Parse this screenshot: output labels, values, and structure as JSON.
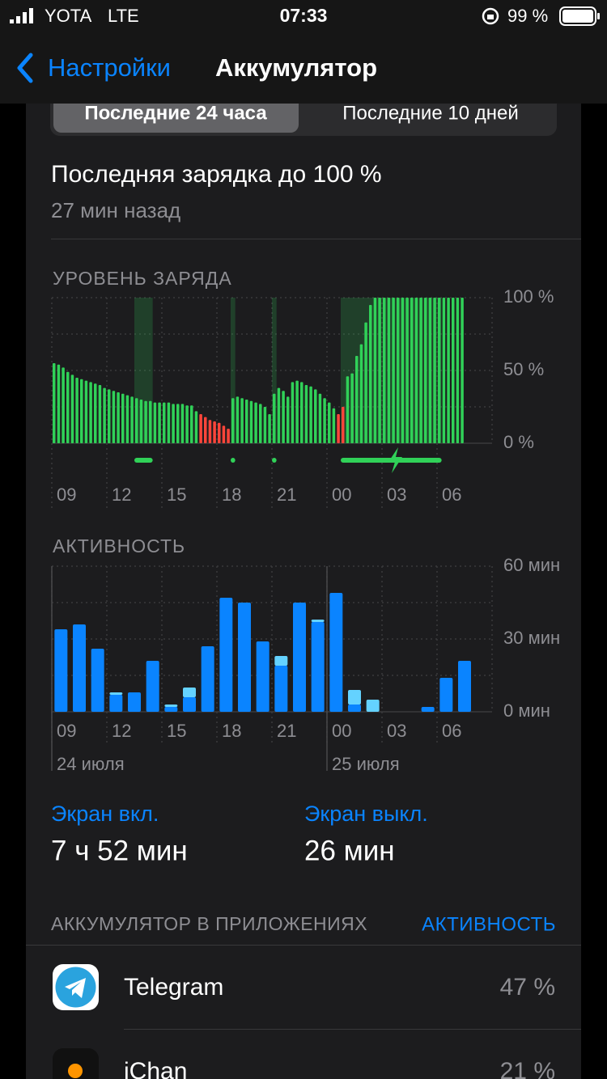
{
  "status_bar": {
    "carrier": "YOTA",
    "network": "LTE",
    "time": "07:33",
    "battery": "99 %"
  },
  "nav": {
    "back": "Настройки",
    "title": "Аккумулятор"
  },
  "segments": [
    "Последние 24 часа",
    "Последние 10 дней"
  ],
  "last_charge": {
    "title": "Последняя зарядка до 100 %",
    "subtitle": "27 мин назад"
  },
  "chart_data": [
    {
      "type": "bar",
      "title": "УРОВЕНЬ ЗАРЯДА",
      "values": [
        55,
        54,
        52,
        49,
        47,
        45,
        44,
        43,
        42,
        41,
        40,
        38,
        37,
        36,
        35,
        34,
        33,
        32,
        31,
        30,
        29,
        29,
        28,
        28,
        28,
        28,
        27,
        27,
        27,
        26,
        26,
        22,
        20,
        18,
        16,
        15,
        14,
        12,
        10,
        31,
        32,
        31,
        30,
        29,
        28,
        27,
        25,
        20,
        34,
        38,
        36,
        32,
        42,
        43,
        42,
        40,
        39,
        37,
        34,
        31,
        28,
        24,
        20,
        25,
        46,
        48,
        60,
        68,
        83,
        95,
        100,
        100,
        100,
        100,
        100,
        100,
        100,
        100,
        100,
        100,
        100,
        100,
        100,
        100,
        100,
        100,
        100,
        100,
        100,
        100
      ],
      "colors": [
        "#30d158",
        "#30d158",
        "#30d158",
        "#30d158",
        "#30d158",
        "#30d158",
        "#30d158",
        "#30d158",
        "#30d158",
        "#30d158",
        "#30d158",
        "#30d158",
        "#30d158",
        "#30d158",
        "#30d158",
        "#30d158",
        "#30d158",
        "#30d158",
        "#30d158",
        "#30d158",
        "#30d158",
        "#30d158",
        "#30d158",
        "#30d158",
        "#30d158",
        "#30d158",
        "#30d158",
        "#30d158",
        "#30d158",
        "#30d158",
        "#30d158",
        "#30d158",
        "#ff453a",
        "#ff453a",
        "#ff453a",
        "#ff453a",
        "#ff453a",
        "#ff453a",
        "#ff453a",
        "#30d158",
        "#30d158",
        "#30d158",
        "#30d158",
        "#30d158",
        "#30d158",
        "#30d158",
        "#30d158",
        "#30d158",
        "#30d158",
        "#30d158",
        "#30d158",
        "#30d158",
        "#30d158",
        "#30d158",
        "#30d158",
        "#30d158",
        "#30d158",
        "#30d158",
        "#30d158",
        "#30d158",
        "#30d158",
        "#30d158",
        "#ff453a",
        "#ff453a",
        "#30d158",
        "#30d158",
        "#30d158",
        "#30d158",
        "#30d158",
        "#30d158",
        "#30d158",
        "#30d158",
        "#30d158",
        "#30d158",
        "#30d158",
        "#30d158",
        "#30d158",
        "#30d158",
        "#30d158",
        "#30d158",
        "#30d158",
        "#30d158",
        "#30d158",
        "#30d158",
        "#30d158",
        "#30d158",
        "#30d158",
        "#30d158",
        "#30d158",
        "#30d158"
      ],
      "charging_spans": [
        [
          18,
          21
        ],
        [
          39,
          39
        ],
        [
          48,
          48
        ],
        [
          63,
          84
        ]
      ],
      "charging_color": "#30d158",
      "xlim": [
        0,
        96
      ],
      "xticks": [
        {
          "value": 0,
          "label": "09"
        },
        {
          "value": 12,
          "label": "12"
        },
        {
          "value": 24,
          "label": "15"
        },
        {
          "value": 36,
          "label": "18"
        },
        {
          "value": 48,
          "label": "21"
        },
        {
          "value": 60,
          "label": "00"
        },
        {
          "value": 72,
          "label": "03"
        },
        {
          "value": 84,
          "label": "06"
        }
      ],
      "ylim": [
        0,
        100
      ],
      "yticks": [
        {
          "value": 0,
          "label": "0 %"
        },
        25,
        {
          "value": 50,
          "label": "50 %"
        },
        75,
        {
          "value": 100,
          "label": "100 %"
        }
      ],
      "grid": true
    },
    {
      "type": "stacked-bar",
      "title": "АКТИВНОСТЬ",
      "series": [
        {
          "name": "Экран вкл.",
          "color": "#0a84ff",
          "values": [
            34,
            36,
            26,
            7,
            8,
            21,
            2,
            6,
            27,
            47,
            45,
            29,
            19,
            45,
            37,
            49,
            3,
            0,
            0,
            0,
            2,
            14,
            21
          ]
        },
        {
          "name": "Экран выкл.",
          "color": "#64d2ff",
          "values": [
            0,
            0,
            0,
            1,
            0,
            0,
            1,
            4,
            0,
            0,
            0,
            0,
            4,
            0,
            1,
            0,
            6,
            5,
            0,
            0,
            0,
            0,
            0
          ]
        }
      ],
      "xlim": [
        0,
        24
      ],
      "xticks": [
        {
          "value": 0,
          "label": "09"
        },
        {
          "value": 3,
          "label": "12"
        },
        {
          "value": 6,
          "label": "15"
        },
        {
          "value": 9,
          "label": "18"
        },
        {
          "value": 12,
          "label": "21"
        },
        {
          "value": 15,
          "label": "00"
        },
        {
          "value": 18,
          "label": "03"
        },
        {
          "value": 21,
          "label": "06"
        }
      ],
      "date_labels": [
        {
          "value": 0,
          "label": "24 июля"
        },
        {
          "value": 15,
          "label": "25 июля"
        }
      ],
      "ylim": [
        0,
        60
      ],
      "yticks": [
        {
          "value": 0,
          "label": "0 мин"
        },
        15,
        {
          "value": 30,
          "label": "30 мин"
        },
        45,
        {
          "value": 60,
          "label": "60 мин"
        }
      ],
      "grid": true
    }
  ],
  "summary": {
    "screen_on": "7 ч 52 мин",
    "screen_off": "26 мин"
  },
  "apps_section": {
    "title": "АККУМУЛЯТОР В ПРИЛОЖЕНИЯХ",
    "link": "АКТИВНОСТЬ"
  },
  "apps": [
    {
      "name": "Telegram",
      "value": "47 %"
    },
    {
      "name": "iChan",
      "value": "21 %"
    }
  ]
}
